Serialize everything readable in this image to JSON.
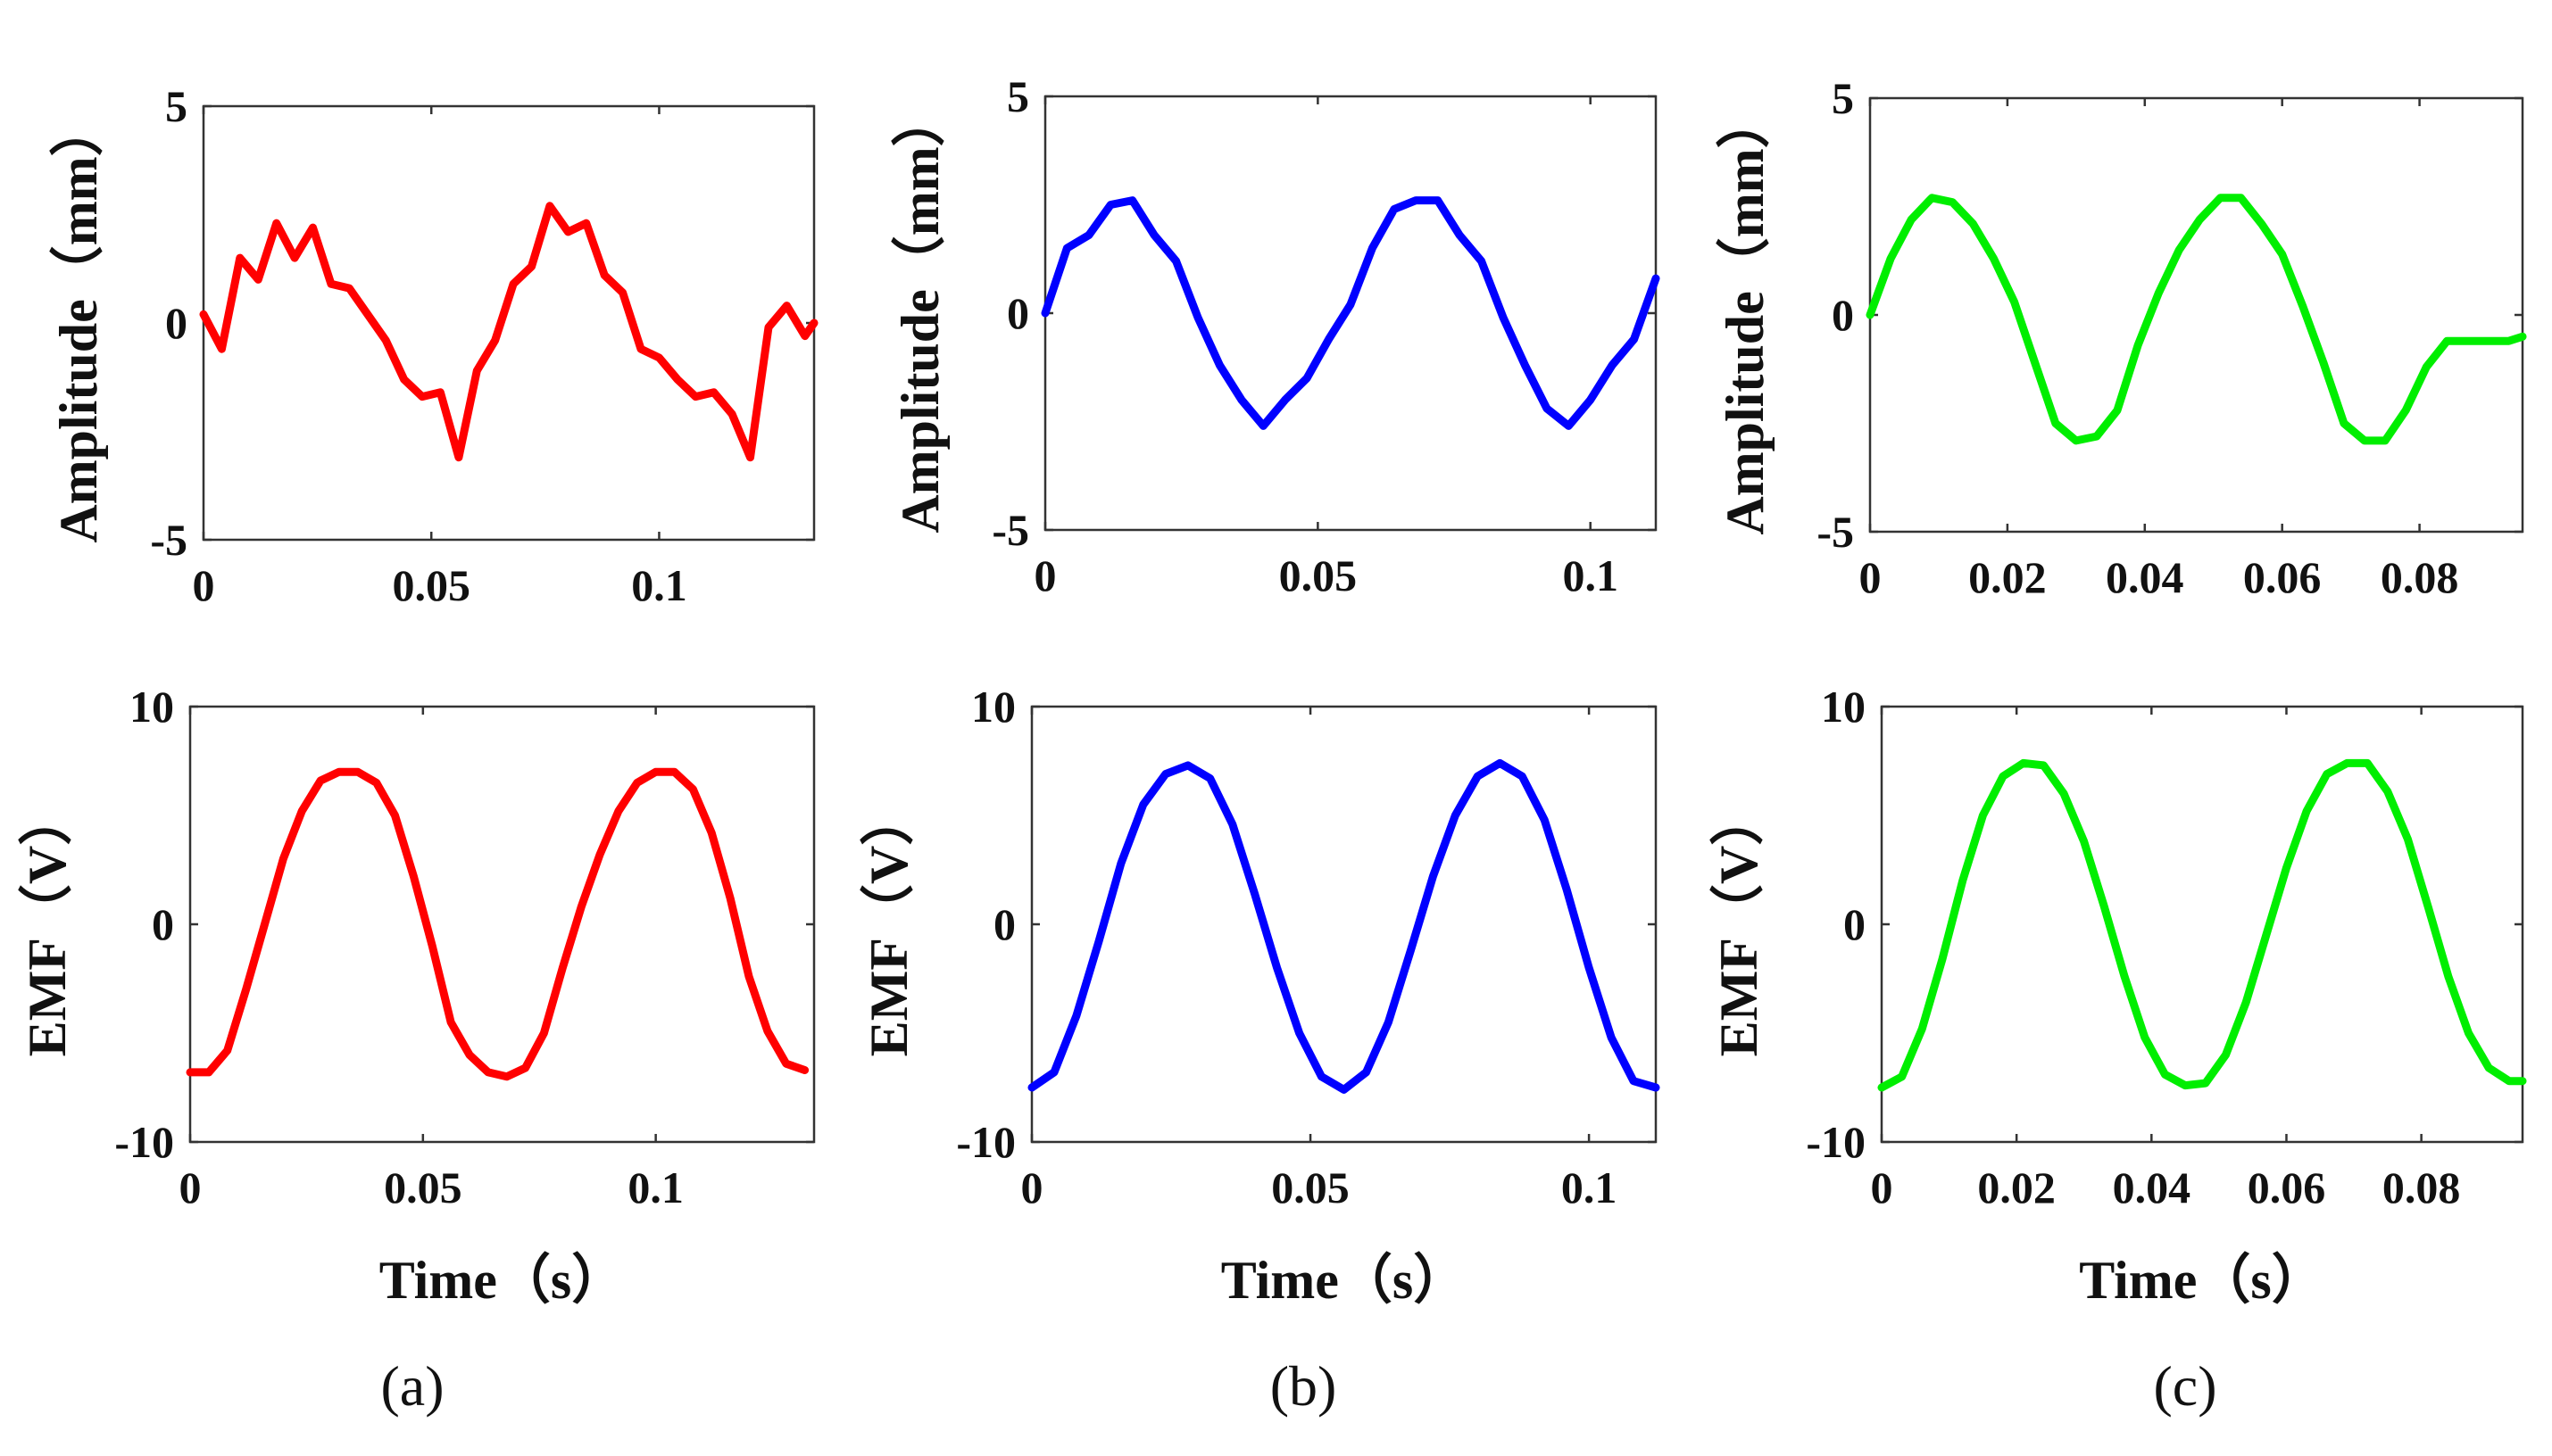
{
  "chart_data": [
    {
      "type": "line",
      "panel": "a",
      "row": "top",
      "ylabel": "Amplitude（mm）",
      "xlabel": "",
      "xlim": [
        0,
        0.134
      ],
      "ylim": [
        -5,
        5
      ],
      "xticks": [
        0,
        0.05,
        0.1
      ],
      "xtick_labels": [
        "0",
        "0.05",
        "0.1"
      ],
      "yticks": [
        -5,
        0,
        5
      ],
      "ytick_labels": [
        "-5",
        "0",
        "5"
      ],
      "color": "#ff0000",
      "x": [
        0,
        0.004,
        0.008,
        0.012,
        0.016,
        0.02,
        0.024,
        0.028,
        0.032,
        0.036,
        0.04,
        0.044,
        0.048,
        0.052,
        0.056,
        0.06,
        0.064,
        0.068,
        0.072,
        0.076,
        0.08,
        0.084,
        0.088,
        0.092,
        0.096,
        0.1,
        0.104,
        0.108,
        0.112,
        0.116,
        0.12,
        0.124,
        0.128,
        0.132,
        0.134
      ],
      "y": [
        0.2,
        -0.6,
        1.5,
        1.0,
        2.3,
        1.5,
        2.2,
        0.9,
        0.8,
        0.2,
        -0.4,
        -1.3,
        -1.7,
        -1.6,
        -3.1,
        -1.1,
        -0.4,
        0.9,
        1.3,
        2.7,
        2.1,
        2.3,
        1.1,
        0.7,
        -0.6,
        -0.8,
        -1.3,
        -1.7,
        -1.6,
        -2.1,
        -3.1,
        -0.1,
        0.4,
        -0.3,
        0.0
      ]
    },
    {
      "type": "line",
      "panel": "b",
      "row": "top",
      "ylabel": "Amplitude（mm）",
      "xlabel": "",
      "xlim": [
        0,
        0.112
      ],
      "ylim": [
        -5,
        5
      ],
      "xticks": [
        0,
        0.05,
        0.1
      ],
      "xtick_labels": [
        "0",
        "0.05",
        "0.1"
      ],
      "yticks": [
        -5,
        0,
        5
      ],
      "ytick_labels": [
        "-5",
        "0",
        "5"
      ],
      "color": "#0000ff",
      "x": [
        0,
        0.004,
        0.008,
        0.012,
        0.016,
        0.02,
        0.024,
        0.028,
        0.032,
        0.036,
        0.04,
        0.044,
        0.048,
        0.052,
        0.056,
        0.06,
        0.064,
        0.068,
        0.072,
        0.076,
        0.08,
        0.084,
        0.088,
        0.092,
        0.096,
        0.1,
        0.104,
        0.108,
        0.112
      ],
      "y": [
        0.0,
        1.5,
        1.8,
        2.5,
        2.6,
        1.8,
        1.2,
        -0.1,
        -1.2,
        -2.0,
        -2.6,
        -2.0,
        -1.5,
        -0.6,
        0.2,
        1.5,
        2.4,
        2.6,
        2.6,
        1.8,
        1.2,
        -0.1,
        -1.2,
        -2.2,
        -2.6,
        -2.0,
        -1.2,
        -0.6,
        0.8
      ]
    },
    {
      "type": "line",
      "panel": "c",
      "row": "top",
      "ylabel": "Amplitude（mm）",
      "xlabel": "",
      "xlim": [
        0,
        0.095
      ],
      "ylim": [
        -5,
        5
      ],
      "xticks": [
        0,
        0.02,
        0.04,
        0.06,
        0.08
      ],
      "xtick_labels": [
        "0",
        "0.02",
        "0.04",
        "0.06",
        "0.08"
      ],
      "yticks": [
        -5,
        0,
        5
      ],
      "ytick_labels": [
        "-5",
        "0",
        "5"
      ],
      "color": "#00ee00",
      "x": [
        0,
        0.003,
        0.006,
        0.009,
        0.012,
        0.015,
        0.018,
        0.021,
        0.024,
        0.027,
        0.03,
        0.033,
        0.036,
        0.039,
        0.042,
        0.045,
        0.048,
        0.051,
        0.054,
        0.057,
        0.06,
        0.063,
        0.066,
        0.069,
        0.072,
        0.075,
        0.078,
        0.081,
        0.084,
        0.087,
        0.09,
        0.093,
        0.095
      ],
      "y": [
        0.0,
        1.3,
        2.2,
        2.7,
        2.6,
        2.1,
        1.3,
        0.3,
        -1.1,
        -2.5,
        -2.9,
        -2.8,
        -2.2,
        -0.7,
        0.5,
        1.5,
        2.2,
        2.7,
        2.7,
        2.1,
        1.4,
        0.2,
        -1.1,
        -2.5,
        -2.9,
        -2.9,
        -2.2,
        -1.2,
        -0.6,
        -0.6,
        -0.6,
        -0.6,
        -0.5
      ]
    },
    {
      "type": "line",
      "panel": "a",
      "row": "bottom",
      "ylabel": "EMF（V）",
      "xlabel": "Time（s）",
      "xlim": [
        0,
        0.134
      ],
      "ylim": [
        -10,
        10
      ],
      "xticks": [
        0,
        0.05,
        0.1
      ],
      "xtick_labels": [
        "0",
        "0.05",
        "0.1"
      ],
      "yticks": [
        -10,
        0,
        10
      ],
      "ytick_labels": [
        "-10",
        "0",
        "10"
      ],
      "color": "#ff0000",
      "x": [
        0,
        0.004,
        0.008,
        0.012,
        0.016,
        0.02,
        0.024,
        0.028,
        0.032,
        0.036,
        0.04,
        0.044,
        0.048,
        0.052,
        0.056,
        0.06,
        0.064,
        0.068,
        0.072,
        0.076,
        0.08,
        0.084,
        0.088,
        0.092,
        0.096,
        0.1,
        0.104,
        0.108,
        0.112,
        0.116,
        0.12,
        0.124,
        0.128,
        0.132
      ],
      "y": [
        -6.8,
        -6.8,
        -5.8,
        -3.0,
        0.0,
        3.0,
        5.2,
        6.6,
        7.0,
        7.0,
        6.5,
        5.0,
        2.2,
        -1.0,
        -4.5,
        -6.0,
        -6.8,
        -7.0,
        -6.6,
        -5.0,
        -2.0,
        0.8,
        3.2,
        5.2,
        6.5,
        7.0,
        7.0,
        6.2,
        4.2,
        1.2,
        -2.4,
        -4.9,
        -6.4,
        -6.7
      ]
    },
    {
      "type": "line",
      "panel": "b",
      "row": "bottom",
      "ylabel": "EMF（V）",
      "xlabel": "Time（s）",
      "xlim": [
        0,
        0.112
      ],
      "ylim": [
        -10,
        10
      ],
      "xticks": [
        0,
        0.05,
        0.1
      ],
      "xtick_labels": [
        "0",
        "0.05",
        "0.1"
      ],
      "yticks": [
        -10,
        0,
        10
      ],
      "ytick_labels": [
        "-10",
        "0",
        "10"
      ],
      "color": "#0000ff",
      "x": [
        0,
        0.004,
        0.008,
        0.012,
        0.016,
        0.02,
        0.024,
        0.028,
        0.032,
        0.036,
        0.04,
        0.044,
        0.048,
        0.052,
        0.056,
        0.06,
        0.064,
        0.068,
        0.072,
        0.076,
        0.08,
        0.084,
        0.088,
        0.092,
        0.096,
        0.1,
        0.104,
        0.108,
        0.112
      ],
      "y": [
        -7.5,
        -6.8,
        -4.2,
        -0.8,
        2.8,
        5.5,
        6.9,
        7.3,
        6.7,
        4.6,
        1.4,
        -2.0,
        -5.0,
        -7.0,
        -7.6,
        -6.8,
        -4.5,
        -1.2,
        2.2,
        5.0,
        6.8,
        7.4,
        6.8,
        4.8,
        1.6,
        -2.0,
        -5.2,
        -7.2,
        -7.5
      ]
    },
    {
      "type": "line",
      "panel": "c",
      "row": "bottom",
      "ylabel": "EMF（V）",
      "xlabel": "Time（s）",
      "xlim": [
        0,
        0.095
      ],
      "ylim": [
        -10,
        10
      ],
      "xticks": [
        0,
        0.02,
        0.04,
        0.06,
        0.08
      ],
      "xtick_labels": [
        "0",
        "0.02",
        "0.04",
        "0.06",
        "0.08"
      ],
      "yticks": [
        -10,
        0,
        10
      ],
      "ytick_labels": [
        "-10",
        "0",
        "10"
      ],
      "color": "#00ee00",
      "x": [
        0,
        0.003,
        0.006,
        0.009,
        0.012,
        0.015,
        0.018,
        0.021,
        0.024,
        0.027,
        0.03,
        0.033,
        0.036,
        0.039,
        0.042,
        0.045,
        0.048,
        0.051,
        0.054,
        0.057,
        0.06,
        0.063,
        0.066,
        0.069,
        0.072,
        0.075,
        0.078,
        0.081,
        0.084,
        0.087,
        0.09,
        0.093,
        0.095
      ],
      "y": [
        -7.5,
        -7.0,
        -4.8,
        -1.6,
        2.0,
        5.0,
        6.8,
        7.4,
        7.3,
        6.0,
        3.8,
        0.8,
        -2.4,
        -5.2,
        -6.9,
        -7.4,
        -7.3,
        -6.0,
        -3.6,
        -0.5,
        2.6,
        5.2,
        6.9,
        7.4,
        7.4,
        6.1,
        3.9,
        0.8,
        -2.4,
        -5.0,
        -6.6,
        -7.2,
        -7.2
      ]
    }
  ],
  "panel_labels": [
    "(a)",
    "(b)",
    "(c)"
  ]
}
